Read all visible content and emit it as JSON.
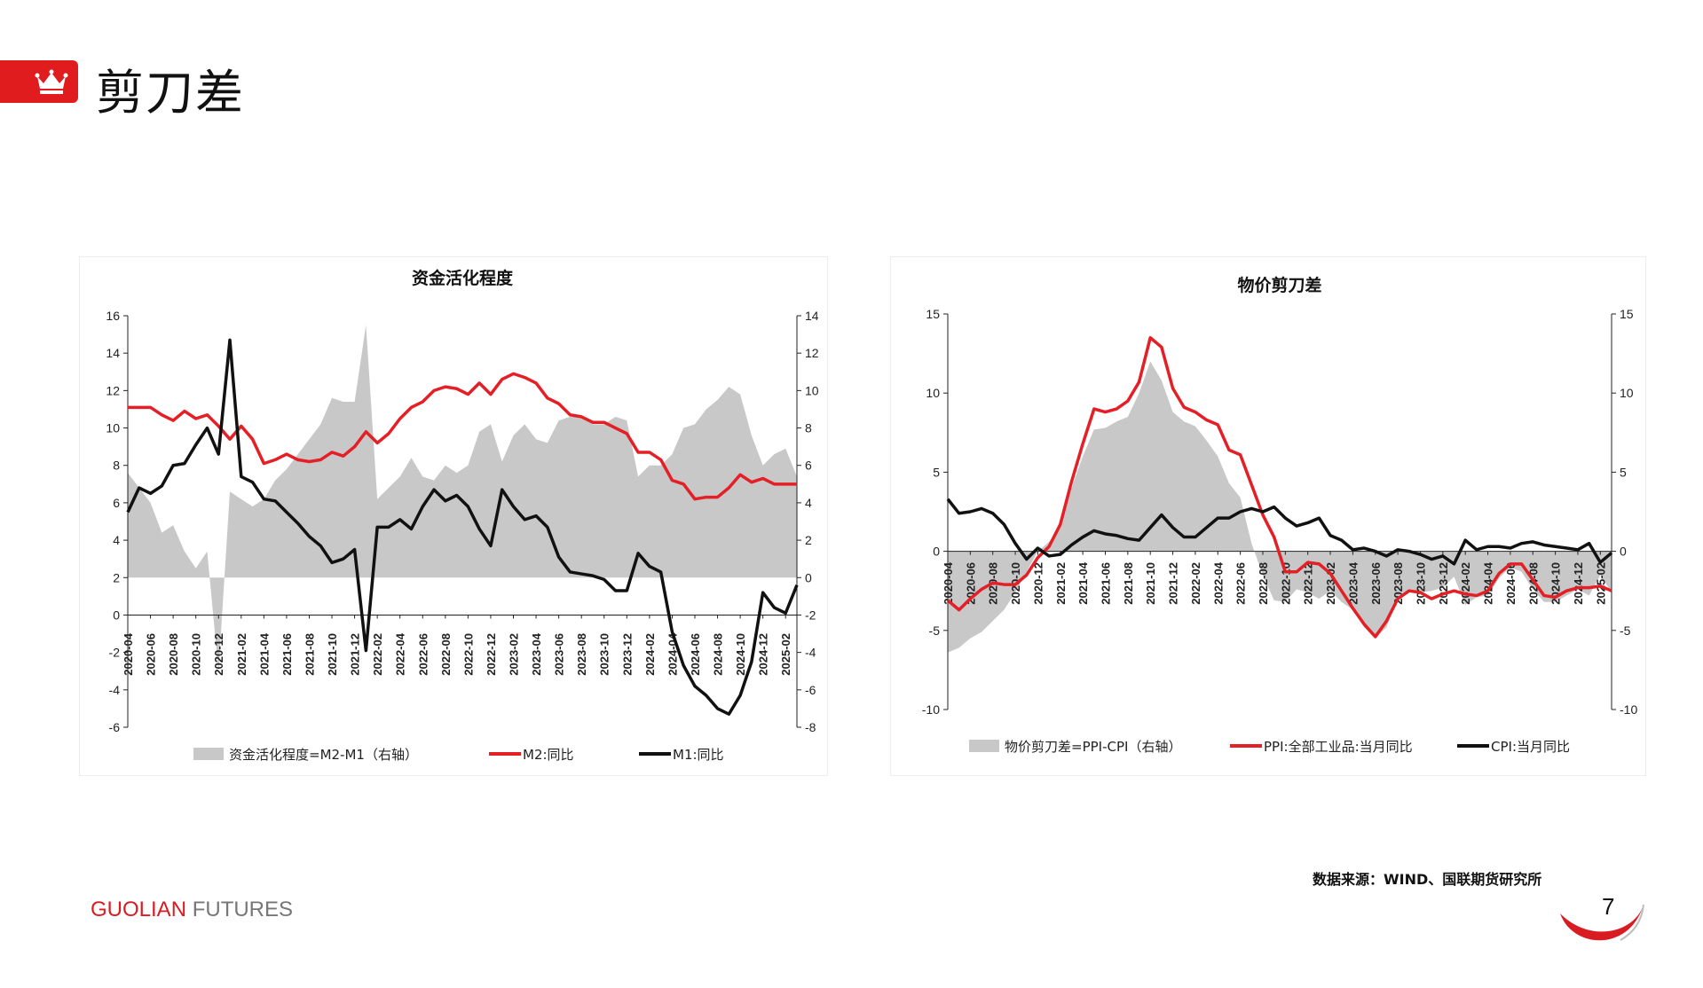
{
  "header": {
    "title": "剪刀差"
  },
  "source_note": "数据来源：WIND、国联期货研究所",
  "footer": {
    "brand_part1": "GUOLIAN",
    "brand_part2": " FUTURES",
    "page_number": "7"
  },
  "colors": {
    "accent": "#e01c1f",
    "red_series": "#e41f26",
    "black_series": "#111111",
    "area": "#c8c8c8"
  },
  "chart_data": [
    {
      "type": "line",
      "title": "资金活化程度",
      "x": [
        "2020-04",
        "2020-05",
        "2020-06",
        "2020-07",
        "2020-08",
        "2020-09",
        "2020-10",
        "2020-11",
        "2020-12",
        "2021-01",
        "2021-02",
        "2021-03",
        "2021-04",
        "2021-05",
        "2021-06",
        "2021-07",
        "2021-08",
        "2021-09",
        "2021-10",
        "2021-11",
        "2021-12",
        "2022-01",
        "2022-02",
        "2022-03",
        "2022-04",
        "2022-05",
        "2022-06",
        "2022-07",
        "2022-08",
        "2022-09",
        "2022-10",
        "2022-11",
        "2022-12",
        "2023-01",
        "2023-02",
        "2023-03",
        "2023-04",
        "2023-05",
        "2023-06",
        "2023-07",
        "2023-08",
        "2023-09",
        "2023-10",
        "2023-11",
        "2023-12",
        "2024-01",
        "2024-02",
        "2024-03",
        "2024-04",
        "2024-05",
        "2024-06",
        "2024-07",
        "2024-08",
        "2024-09",
        "2024-10",
        "2024-11",
        "2024-12",
        "2025-01",
        "2025-02",
        "2025-03"
      ],
      "x_tick_labels": [
        "2020-04",
        "2020-06",
        "2020-08",
        "2020-10",
        "2020-12",
        "2021-02",
        "2021-04",
        "2021-06",
        "2021-08",
        "2021-10",
        "2021-12",
        "2022-02",
        "2022-04",
        "2022-06",
        "2022-08",
        "2022-10",
        "2022-12",
        "2023-02",
        "2023-04",
        "2023-06",
        "2023-08",
        "2023-10",
        "2023-12",
        "2024-02",
        "2024-04",
        "2024-06",
        "2024-08",
        "2024-10",
        "2024-12",
        "2025-02"
      ],
      "ylim_left": [
        -6,
        16
      ],
      "yticks_left": [
        -6,
        -4,
        -2,
        0,
        2,
        4,
        6,
        8,
        10,
        12,
        14,
        16
      ],
      "ylim_right": [
        -8,
        14
      ],
      "yticks_right": [
        -8,
        -6,
        -4,
        -2,
        0,
        2,
        4,
        6,
        8,
        10,
        12,
        14
      ],
      "area_series": {
        "name": "资金活化程度=M2-M1（右轴）",
        "axis": "right",
        "values": [
          5.6,
          4.8,
          4.0,
          2.4,
          2.8,
          1.4,
          0.5,
          1.4,
          -5,
          4.6,
          4.2,
          3.8,
          4.2,
          5.2,
          5.8,
          6.6,
          7.4,
          8.2,
          9.6,
          9.4,
          9.4,
          13.5,
          4.2,
          4.8,
          5.4,
          6.4,
          5.4,
          5.2,
          6.0,
          5.6,
          6.0,
          7.8,
          8.2,
          6.2,
          7.6,
          8.2,
          7.4,
          7.2,
          8.4,
          8.6,
          8.6,
          8.2,
          8.2,
          8.6,
          8.4,
          5.4,
          6.0,
          6.0,
          6.6,
          8.0,
          8.2,
          9.0,
          9.5,
          10.2,
          9.8,
          7.6,
          6.0,
          6.6,
          6.9,
          5.4
        ]
      },
      "series": [
        {
          "name": "M2:同比",
          "axis": "left",
          "color": "#e41f26",
          "values": [
            11.1,
            11.1,
            11.1,
            10.7,
            10.4,
            10.9,
            10.5,
            10.7,
            10.1,
            9.4,
            10.1,
            9.4,
            8.1,
            8.3,
            8.6,
            8.3,
            8.2,
            8.3,
            8.7,
            8.5,
            9.0,
            9.8,
            9.2,
            9.7,
            10.5,
            11.1,
            11.4,
            12.0,
            12.2,
            12.1,
            11.8,
            12.4,
            11.8,
            12.6,
            12.9,
            12.7,
            12.4,
            11.6,
            11.3,
            10.7,
            10.6,
            10.3,
            10.3,
            10.0,
            9.7,
            8.7,
            8.7,
            8.3,
            7.2,
            7.0,
            6.2,
            6.3,
            6.3,
            6.8,
            7.5,
            7.1,
            7.3,
            7.0,
            7.0,
            7.0
          ]
        },
        {
          "name": "M1:同比",
          "axis": "left",
          "color": "#111111",
          "values": [
            5.5,
            6.8,
            6.5,
            6.9,
            8.0,
            8.1,
            9.1,
            10.0,
            8.6,
            14.7,
            7.4,
            7.1,
            6.2,
            6.1,
            5.5,
            4.9,
            4.2,
            3.7,
            2.8,
            3.0,
            3.5,
            -1.9,
            4.7,
            4.7,
            5.1,
            4.6,
            5.8,
            6.7,
            6.1,
            6.4,
            5.8,
            4.6,
            3.7,
            6.7,
            5.8,
            5.1,
            5.3,
            4.7,
            3.1,
            2.3,
            2.2,
            2.1,
            1.9,
            1.3,
            1.3,
            3.3,
            2.6,
            2.3,
            -0.9,
            -2.7,
            -3.8,
            -4.3,
            -5.0,
            -5.3,
            -4.3,
            -2.5,
            1.2,
            0.4,
            0.1,
            1.6
          ]
        }
      ],
      "legend": [
        "资金活化程度=M2-M1（右轴）",
        "M2:同比",
        "M1:同比"
      ],
      "legend_position": "bottom"
    },
    {
      "type": "line",
      "title": "物价剪刀差",
      "x": [
        "2020-04",
        "2020-05",
        "2020-06",
        "2020-07",
        "2020-08",
        "2020-09",
        "2020-10",
        "2020-11",
        "2020-12",
        "2021-01",
        "2021-02",
        "2021-03",
        "2021-04",
        "2021-05",
        "2021-06",
        "2021-07",
        "2021-08",
        "2021-09",
        "2021-10",
        "2021-11",
        "2021-12",
        "2022-01",
        "2022-02",
        "2022-03",
        "2022-04",
        "2022-05",
        "2022-06",
        "2022-07",
        "2022-08",
        "2022-09",
        "2022-10",
        "2022-11",
        "2022-12",
        "2023-01",
        "2023-02",
        "2023-03",
        "2023-04",
        "2023-05",
        "2023-06",
        "2023-07",
        "2023-08",
        "2023-09",
        "2023-10",
        "2023-11",
        "2023-12",
        "2024-01",
        "2024-02",
        "2024-03",
        "2024-04",
        "2024-05",
        "2024-06",
        "2024-07",
        "2024-08",
        "2024-09",
        "2024-10",
        "2024-11",
        "2024-12",
        "2025-01",
        "2025-02",
        "2025-03"
      ],
      "x_tick_labels": [
        "2020-04",
        "2020-06",
        "2020-08",
        "2020-10",
        "2020-12",
        "2021-02",
        "2021-04",
        "2021-06",
        "2021-08",
        "2021-10",
        "2021-12",
        "2022-02",
        "2022-04",
        "2022-06",
        "2022-08",
        "2022-10",
        "2022-12",
        "2023-02",
        "2023-04",
        "2023-06",
        "2023-08",
        "2023-10",
        "2023-12",
        "2024-02",
        "2024-04",
        "2024-06",
        "2024-08",
        "2024-10",
        "2024-12",
        "2025-02"
      ],
      "ylim_left": [
        -10,
        15
      ],
      "yticks_left": [
        -10,
        -5,
        0,
        5,
        10,
        15
      ],
      "ylim_right": [
        -10,
        15
      ],
      "yticks_right": [
        -10,
        -5,
        0,
        5,
        10,
        15
      ],
      "area_series": {
        "name": "物价剪刀差=PPI-CPI（右轴）",
        "axis": "right",
        "values": [
          -6.4,
          -6.1,
          -5.5,
          -5.1,
          -4.4,
          -3.7,
          -2.6,
          -1.3,
          0.0,
          0.6,
          1.5,
          4.0,
          6.0,
          7.7,
          7.8,
          8.2,
          8.5,
          10.0,
          12.0,
          10.8,
          8.8,
          8.2,
          7.9,
          7.0,
          6.0,
          4.3,
          3.4,
          0.5,
          -1.5,
          -3.1,
          -3.2,
          -2.4,
          -2.6,
          -3.0,
          -2.5,
          -3.2,
          -3.7,
          -4.8,
          -5.5,
          -4.8,
          -2.9,
          -2.5,
          -2.6,
          -2.5,
          -2.3,
          -1.6,
          -3.4,
          -2.9,
          -2.8,
          -1.7,
          -1.0,
          -1.3,
          -2.4,
          -3.2,
          -3.2,
          -2.8,
          -2.4,
          -2.8,
          -1.5,
          -2.6
        ]
      },
      "series": [
        {
          "name": "PPI:全部工业品:当月同比",
          "axis": "left",
          "color": "#e41f26",
          "values": [
            -3.1,
            -3.7,
            -3.0,
            -2.4,
            -2.0,
            -2.1,
            -2.1,
            -1.5,
            -0.4,
            0.3,
            1.7,
            4.4,
            6.8,
            9.0,
            8.8,
            9.0,
            9.5,
            10.7,
            13.5,
            12.9,
            10.3,
            9.1,
            8.8,
            8.3,
            8.0,
            6.4,
            6.1,
            4.2,
            2.3,
            0.9,
            -1.3,
            -1.3,
            -0.7,
            -0.8,
            -1.4,
            -2.5,
            -3.6,
            -4.6,
            -5.4,
            -4.4,
            -3.0,
            -2.5,
            -2.6,
            -3.0,
            -2.7,
            -2.5,
            -2.7,
            -2.8,
            -2.5,
            -1.4,
            -0.8,
            -0.8,
            -1.8,
            -2.8,
            -2.9,
            -2.5,
            -2.3,
            -2.3,
            -2.2,
            -2.5
          ]
        },
        {
          "name": "CPI:当月同比",
          "axis": "left",
          "color": "#111111",
          "values": [
            3.3,
            2.4,
            2.5,
            2.7,
            2.4,
            1.7,
            0.5,
            -0.5,
            0.2,
            -0.3,
            -0.2,
            0.4,
            0.9,
            1.3,
            1.1,
            1.0,
            0.8,
            0.7,
            1.5,
            2.3,
            1.5,
            0.9,
            0.9,
            1.5,
            2.1,
            2.1,
            2.5,
            2.7,
            2.5,
            2.8,
            2.1,
            1.6,
            1.8,
            2.1,
            1.0,
            0.7,
            0.1,
            0.2,
            0.0,
            -0.3,
            0.1,
            0.0,
            -0.2,
            -0.5,
            -0.3,
            -0.8,
            0.7,
            0.1,
            0.3,
            0.3,
            0.2,
            0.5,
            0.6,
            0.4,
            0.3,
            0.2,
            0.1,
            0.5,
            -0.7,
            -0.1
          ]
        }
      ],
      "legend": [
        "物价剪刀差=PPI-CPI（右轴）",
        "PPI:全部工业品:当月同比",
        "CPI:当月同比"
      ],
      "legend_position": "bottom"
    }
  ]
}
